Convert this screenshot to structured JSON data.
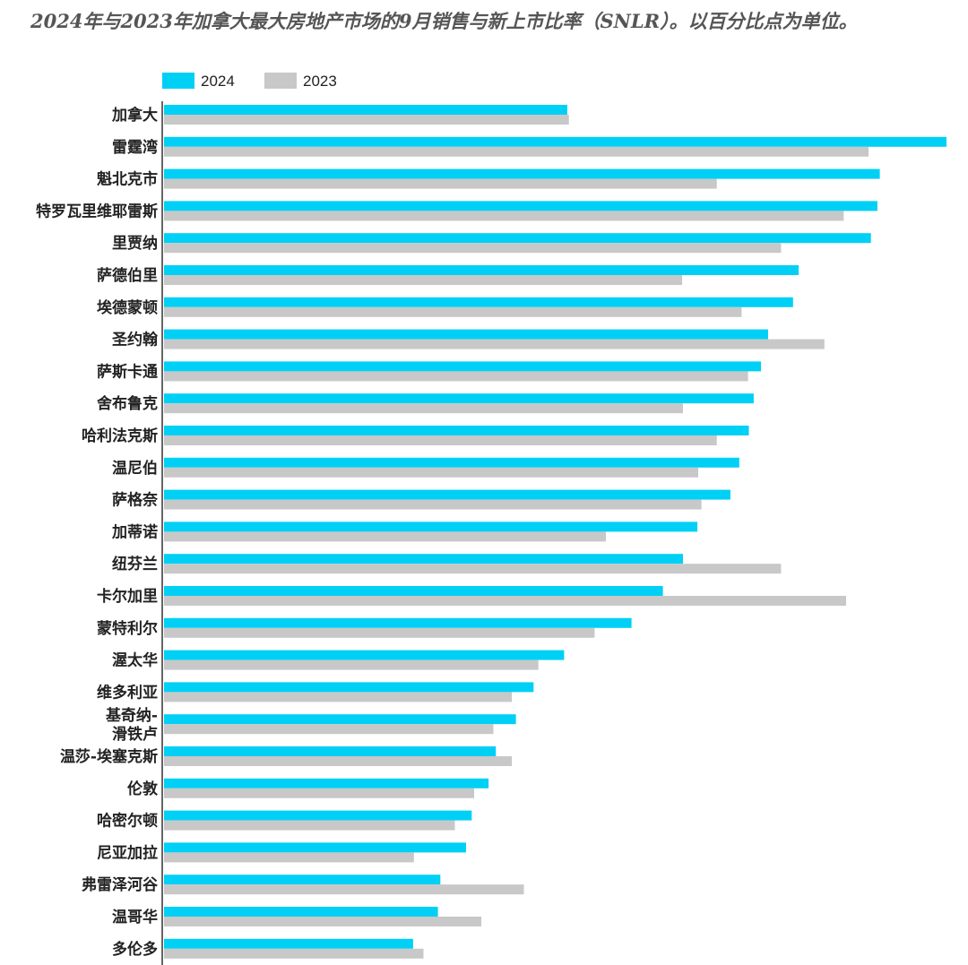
{
  "title": "2024年与2023年加拿大最大房地产市场的9月销售与新上市比率（SNLR）。以百分比点为单位。",
  "chart_data": {
    "type": "bar",
    "orientation": "horizontal",
    "title": "2024年与2023年加拿大最大房地产市场的9月销售与新上市比率（SNLR）。以百分比点为单位。",
    "categories": [
      "加拿大",
      "雷霆湾",
      "魁北克市",
      "特罗瓦里维耶雷斯",
      "里贾纳",
      "萨德伯里",
      "埃德蒙顿",
      "圣约翰",
      "萨斯卡通",
      "舍布鲁克",
      "哈利法克斯",
      "温尼伯",
      "萨格奈",
      "加蒂诺",
      "纽芬兰",
      "卡尔加里",
      "蒙特利尔",
      "渥太华",
      "维多利亚",
      "基奇纳-滑铁卢",
      "温莎-埃塞克斯",
      "伦敦",
      "哈密尔顿",
      "尼亚加拉",
      "弗雷泽河谷",
      "温哥华",
      "多伦多"
    ],
    "series": [
      {
        "name": "2024",
        "color": "#00d0f5",
        "values": [
          50.2,
          97.4,
          89.1,
          88.8,
          88.0,
          79.0,
          78.3,
          75.2,
          74.3,
          73.4,
          72.8,
          71.6,
          70.5,
          66.4,
          64.6,
          62.1,
          58.2,
          49.8,
          46.0,
          43.8,
          41.3,
          40.4,
          38.3,
          37.6,
          34.4,
          34.1,
          31.0
        ]
      },
      {
        "name": "2023",
        "color": "#c8c8c8",
        "values": [
          50.4,
          87.7,
          68.8,
          84.6,
          76.8,
          64.5,
          71.9,
          82.2,
          72.7,
          64.6,
          68.8,
          66.5,
          66.9,
          55.0,
          76.8,
          84.9,
          53.6,
          46.6,
          43.3,
          41.0,
          43.3,
          38.6,
          36.2,
          31.1,
          44.8,
          39.5,
          32.3
        ]
      }
    ],
    "xlim": [
      0,
      97.4
    ],
    "grid": false,
    "legend": "top-left"
  }
}
